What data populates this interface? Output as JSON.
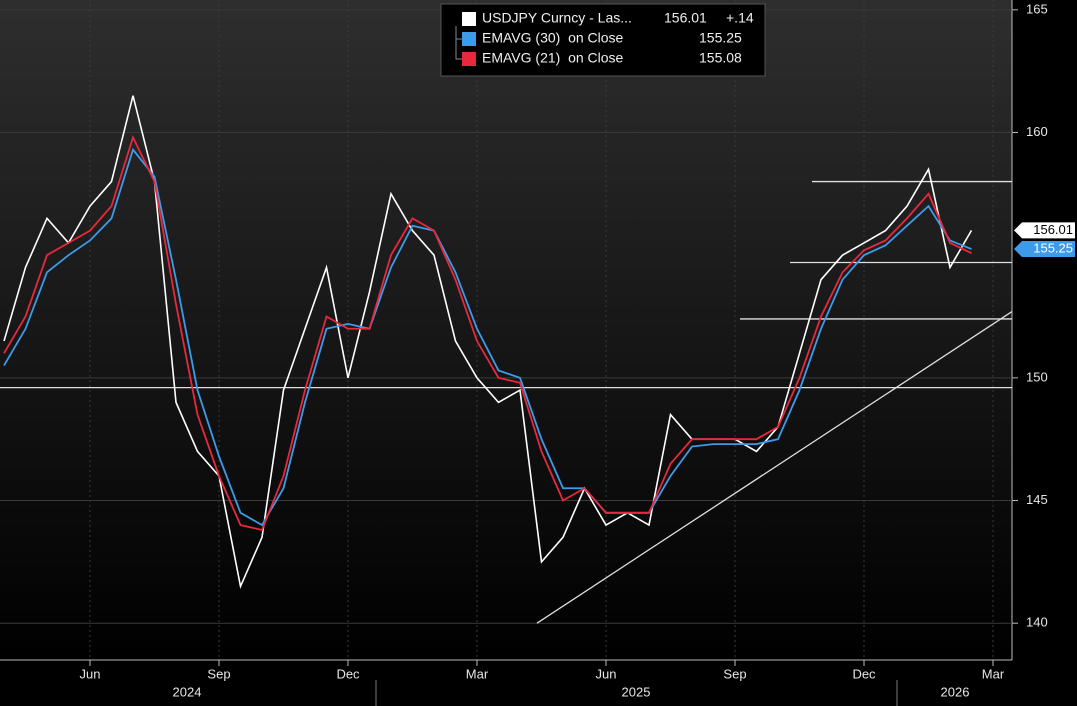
{
  "chart_data": {
    "type": "line",
    "categories": [
      null,
      null,
      null,
      null,
      "Jun",
      null,
      null,
      null,
      null,
      null,
      "Sep",
      null,
      null,
      null,
      null,
      null,
      "Dec",
      null,
      null,
      null,
      null,
      null,
      "Mar",
      null,
      null,
      null,
      null,
      null,
      "Jun",
      null,
      null,
      null,
      null,
      null,
      "Sep",
      null,
      null,
      null,
      null,
      null,
      "Dec",
      null,
      null,
      null,
      null,
      null,
      "Mar"
    ],
    "year_labels": [
      "2024",
      "2025",
      "2026"
    ],
    "series": [
      {
        "name": "USDJPY Curncy - Las...",
        "color": "#ffffff",
        "legend_value": 156.01,
        "change_label": "+.14",
        "values": [
          151.5,
          154.5,
          156.5,
          155.5,
          157,
          158,
          161.5,
          158,
          149,
          147,
          146,
          141.5,
          143.5,
          149.5,
          152,
          154.5,
          150,
          153.5,
          157.5,
          156,
          155,
          151.5,
          150,
          149,
          149.5,
          142.5,
          143.5,
          145.5,
          144,
          144.5,
          144,
          148.5,
          147.5,
          147.5,
          147.5,
          147,
          148,
          151,
          154,
          155,
          155.5,
          156,
          157,
          158.5,
          154.5,
          156.01,
          null
        ]
      },
      {
        "name": "EMAVG (30)  on Close",
        "color": "#3d9be9",
        "legend_value": 155.25,
        "values": [
          150.5,
          152,
          154.3,
          155,
          155.6,
          156.5,
          159.3,
          158.2,
          154,
          149.5,
          146.8,
          144.5,
          144,
          145.5,
          149,
          152,
          152.2,
          152,
          154.5,
          156.2,
          156,
          154.3,
          152,
          150.3,
          150,
          147.5,
          145.5,
          145.5,
          144.5,
          144.5,
          144.5,
          146,
          147.2,
          147.3,
          147.3,
          147.3,
          147.5,
          149.5,
          152,
          154,
          155,
          155.4,
          156.2,
          157,
          155.6,
          155.25,
          null
        ]
      },
      {
        "name": "EMAVG (21)  on Close",
        "color": "#e8283c",
        "legend_value": 155.08,
        "values": [
          151,
          152.5,
          155,
          155.5,
          156,
          157,
          159.8,
          158,
          153,
          148.5,
          146,
          144,
          143.8,
          146,
          149.5,
          152.5,
          152,
          152,
          155,
          156.5,
          156,
          154,
          151.5,
          150,
          149.8,
          147,
          145,
          145.5,
          144.5,
          144.5,
          144.5,
          146.5,
          147.5,
          147.5,
          147.5,
          147.5,
          148,
          150,
          152.5,
          154.3,
          155.2,
          155.6,
          156.5,
          157.5,
          155.5,
          155.08,
          null
        ]
      }
    ],
    "ylim": [
      138.5,
      165.4
    ],
    "yticks": [
      140,
      145,
      150,
      160,
      165
    ],
    "grid": true,
    "hlines": [
      149.6,
      158,
      154.7,
      152.4
    ],
    "trendline": [
      140,
      152.7
    ]
  }
}
